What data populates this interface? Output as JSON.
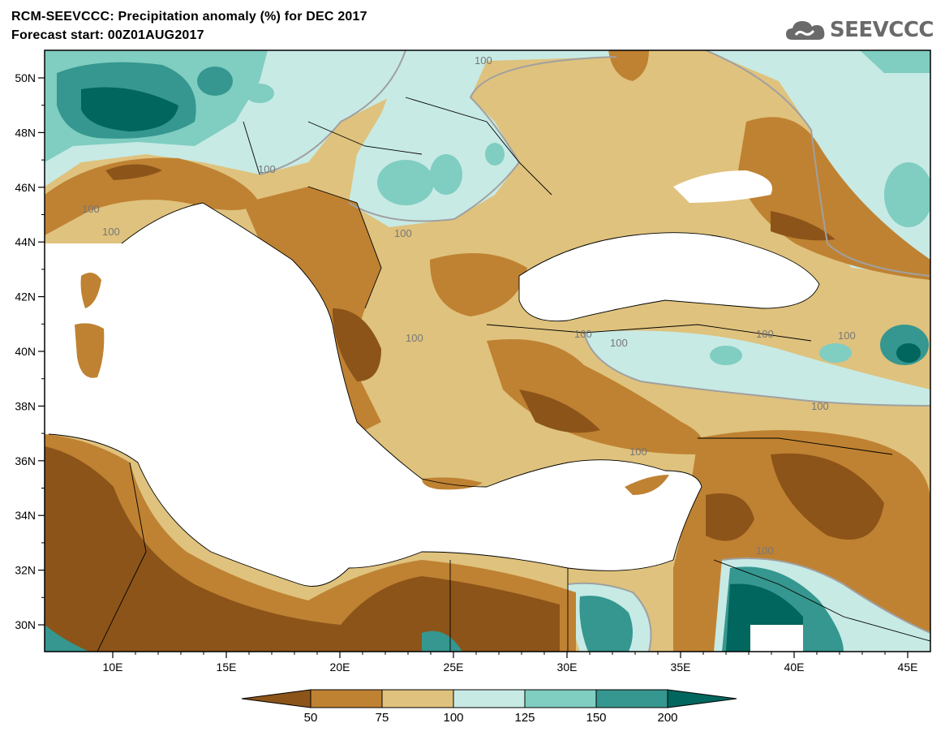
{
  "title_line1": "RCM-SEEVCCC: Precipitation anomaly (%) for DEC 2017",
  "title_line2": "Forecast start: 00Z01AUG2017",
  "logo_text": "SEEVCCC",
  "axes": {
    "lon_ticks": [
      "10E",
      "15E",
      "20E",
      "25E",
      "30E",
      "35E",
      "40E",
      "45E"
    ],
    "lat_ticks": [
      "50N",
      "48N",
      "46N",
      "44N",
      "42N",
      "40N",
      "38N",
      "36N",
      "34N",
      "32N",
      "30N"
    ]
  },
  "contour_labels": [
    "100",
    "100",
    "100",
    "100",
    "100",
    "100",
    "100",
    "100",
    "100",
    "100",
    "100",
    "100",
    "100"
  ],
  "colorbar": {
    "labels": [
      "50",
      "75",
      "100",
      "125",
      "150",
      "200"
    ],
    "colors": [
      "#8c5419",
      "#bf8232",
      "#dfc27d",
      "#c7eae5",
      "#80cdc1",
      "#35978f",
      "#01665e"
    ]
  },
  "map_colors": {
    "sea": "#ffffff",
    "very_dry": "#8c5419",
    "dry": "#bf8232",
    "slightly_dry": "#dfc27d",
    "slightly_wet": "#c7eae5",
    "wet": "#80cdc1",
    "very_wet": "#35978f",
    "extreme_wet": "#01665e"
  }
}
